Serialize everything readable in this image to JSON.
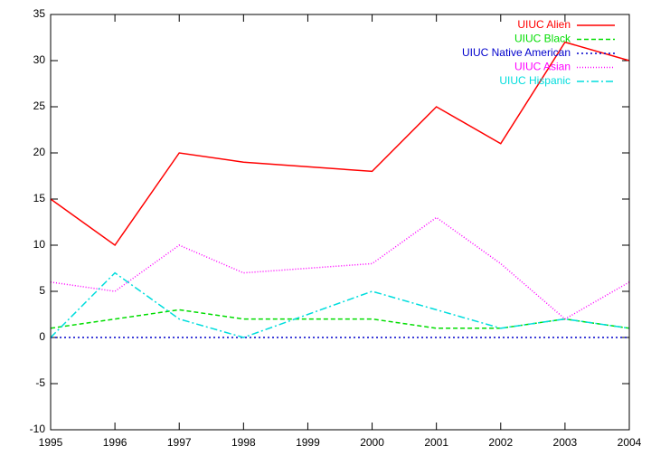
{
  "chart_data": {
    "type": "line",
    "x": [
      1995,
      1996,
      1997,
      1998,
      2000,
      2001,
      2002,
      2003,
      2004
    ],
    "series": [
      {
        "name": "UIUC Alien",
        "color": "#ff0000",
        "dash": "none",
        "values": [
          15,
          10,
          20,
          19,
          18,
          25,
          21,
          32,
          30
        ]
      },
      {
        "name": "UIUC Black",
        "color": "#00dd00",
        "dash": "5,3",
        "values": [
          1,
          2,
          3,
          2,
          2,
          1,
          1,
          2,
          1
        ]
      },
      {
        "name": "UIUC Native American",
        "color": "#0000cc",
        "dash": "2,3",
        "values": [
          0,
          0,
          0,
          0,
          0,
          0,
          0,
          0,
          0
        ]
      },
      {
        "name": "UIUC Asian",
        "color": "#ff00ff",
        "dash": "1,2",
        "values": [
          6,
          5,
          10,
          7,
          8,
          13,
          8,
          2,
          6
        ]
      },
      {
        "name": "UIUC Hispanic",
        "color": "#00dddd",
        "dash": "8,3,2,3",
        "values": [
          0,
          7,
          2,
          0,
          5,
          3,
          1,
          2,
          1
        ]
      }
    ],
    "xlim": [
      1995,
      2004
    ],
    "xticks": [
      1995,
      1996,
      1997,
      1998,
      1999,
      2000,
      2001,
      2002,
      2003,
      2004
    ],
    "ylim": [
      -10,
      35
    ],
    "yticks": [
      -10,
      -5,
      0,
      5,
      10,
      15,
      20,
      25,
      30,
      35
    ],
    "grid": false,
    "legend": "top-right"
  }
}
